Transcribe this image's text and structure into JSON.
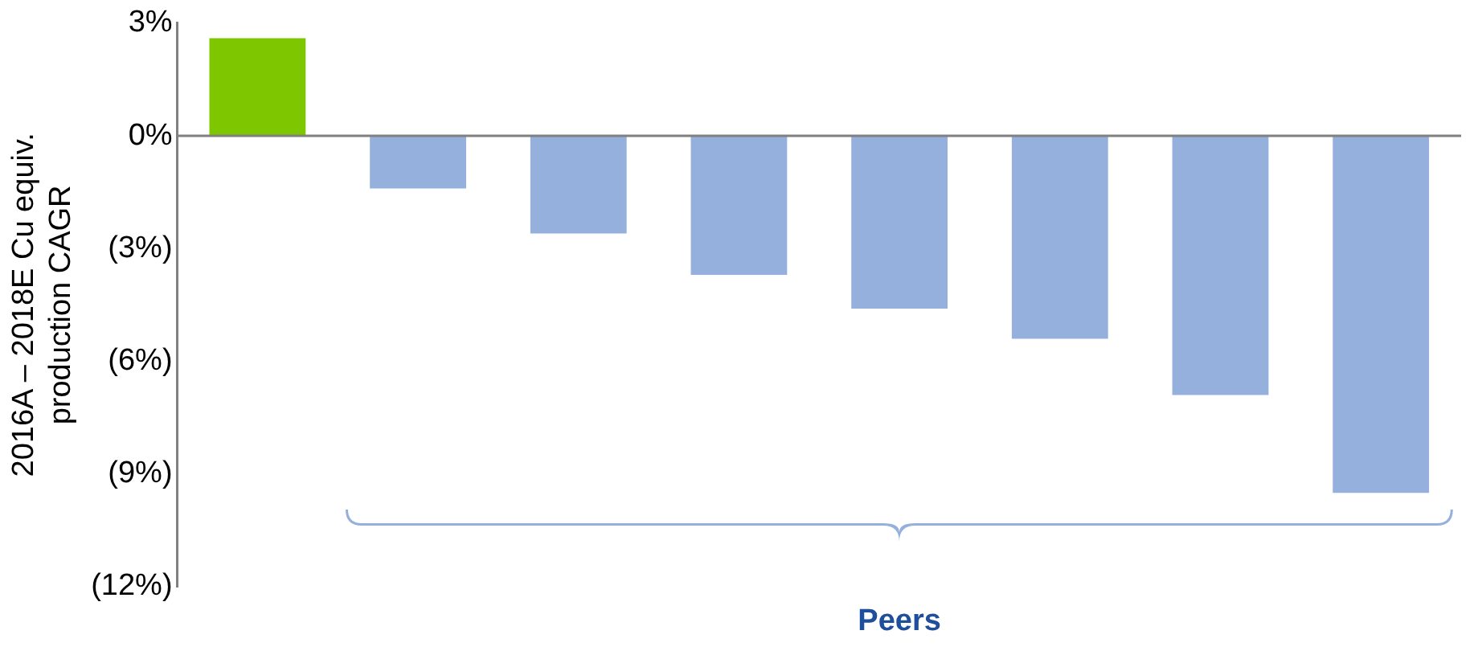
{
  "chart_data": {
    "type": "bar",
    "ylabel": "2016A – 2018E Cu equiv.\nproduction CAGR",
    "categories": [
      null,
      null,
      null,
      null,
      null,
      null,
      null,
      null
    ],
    "values": [
      2.6,
      -1.4,
      -2.6,
      -3.7,
      -4.6,
      -5.4,
      -6.9,
      -9.5
    ],
    "colors": [
      "#7ec700",
      "#95b0dc",
      "#95b0dc",
      "#95b0dc",
      "#95b0dc",
      "#95b0dc",
      "#95b0dc",
      "#95b0dc"
    ],
    "ylim": [
      -12,
      3
    ],
    "yticks": [
      {
        "value": 3,
        "label": "3%"
      },
      {
        "value": 0,
        "label": "0%"
      },
      {
        "value": -3,
        "label": "(3%)"
      },
      {
        "value": -6,
        "label": "(6%)"
      },
      {
        "value": -9,
        "label": "(9%)"
      },
      {
        "value": -12,
        "label": "(12%)"
      }
    ],
    "ref_lines": [
      {
        "axis": "y",
        "value": 0,
        "color": "#808080"
      }
    ],
    "grid": false,
    "legend": false,
    "annotations": [
      "Peers"
    ]
  }
}
